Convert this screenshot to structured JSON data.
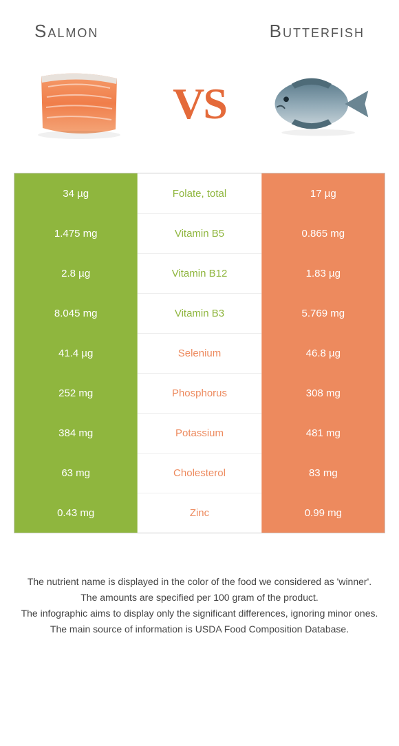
{
  "colors": {
    "green": "#8fb63e",
    "orange": "#ed8a5e",
    "vs": "#e46a3a"
  },
  "header": {
    "left": "Salmon",
    "right": "Butterfish"
  },
  "vs_label": "VS",
  "rows": [
    {
      "left": "34 µg",
      "mid": "Folate, total",
      "right": "17 µg",
      "left_bg": "#8fb63e",
      "right_bg": "#ed8a5e",
      "mid_color": "#8fb63e"
    },
    {
      "left": "1.475 mg",
      "mid": "Vitamin B5",
      "right": "0.865 mg",
      "left_bg": "#8fb63e",
      "right_bg": "#ed8a5e",
      "mid_color": "#8fb63e"
    },
    {
      "left": "2.8 µg",
      "mid": "Vitamin B12",
      "right": "1.83 µg",
      "left_bg": "#8fb63e",
      "right_bg": "#ed8a5e",
      "mid_color": "#8fb63e"
    },
    {
      "left": "8.045 mg",
      "mid": "Vitamin B3",
      "right": "5.769 mg",
      "left_bg": "#8fb63e",
      "right_bg": "#ed8a5e",
      "mid_color": "#8fb63e"
    },
    {
      "left": "41.4 µg",
      "mid": "Selenium",
      "right": "46.8 µg",
      "left_bg": "#8fb63e",
      "right_bg": "#ed8a5e",
      "mid_color": "#ed8a5e"
    },
    {
      "left": "252 mg",
      "mid": "Phosphorus",
      "right": "308 mg",
      "left_bg": "#8fb63e",
      "right_bg": "#ed8a5e",
      "mid_color": "#ed8a5e"
    },
    {
      "left": "384 mg",
      "mid": "Potassium",
      "right": "481 mg",
      "left_bg": "#8fb63e",
      "right_bg": "#ed8a5e",
      "mid_color": "#ed8a5e"
    },
    {
      "left": "63 mg",
      "mid": "Cholesterol",
      "right": "83 mg",
      "left_bg": "#8fb63e",
      "right_bg": "#ed8a5e",
      "mid_color": "#ed8a5e"
    },
    {
      "left": "0.43 mg",
      "mid": "Zinc",
      "right": "0.99 mg",
      "left_bg": "#8fb63e",
      "right_bg": "#ed8a5e",
      "mid_color": "#ed8a5e"
    }
  ],
  "footer": [
    "The nutrient name is displayed in the color of the food we considered as 'winner'.",
    "The amounts are specified per 100 gram of the product.",
    "The infographic aims to display only the significant differences, ignoring minor ones.",
    "The main source of information is USDA Food Composition Database."
  ]
}
